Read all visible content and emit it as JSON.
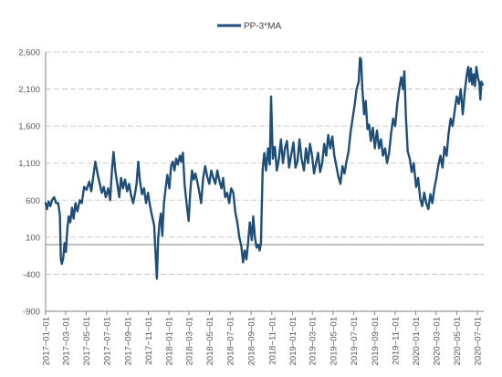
{
  "chart_data": {
    "type": "line",
    "title": "",
    "xlabel": "",
    "ylabel": "",
    "ylim": [
      -900,
      2600
    ],
    "yticks": [
      -900,
      -400,
      100,
      600,
      1100,
      1600,
      2100,
      2600
    ],
    "ytick_labels": [
      "-900",
      "-400",
      "100",
      "600",
      "1,100",
      "1,600",
      "2,100",
      "2,600"
    ],
    "xticks": [
      "2017-01-01",
      "2017-03-01",
      "2017-05-01",
      "2017-07-01",
      "2017-09-01",
      "2017-11-01",
      "2018-01-01",
      "2018-03-01",
      "2018-05-01",
      "2018-07-01",
      "2018-09-01",
      "2018-11-01",
      "2019-01-01",
      "2019-03-01",
      "2019-05-01",
      "2019-07-01",
      "2019-09-01",
      "2019-11-01",
      "2020-01-01",
      "2020-03-01",
      "2020-05-01",
      "2020-07-01"
    ],
    "xtick_labels": [
      "2017−01−01",
      "2017−03−01",
      "2017−05−01",
      "2017−07−01",
      "2017−09−01",
      "2017−11−01",
      "2018−01−01",
      "2018−03−01",
      "2018−05−01",
      "2018−07−01",
      "2018−09−01",
      "2018−11−01",
      "2019−01−01",
      "2019−03−01",
      "2019−05−01",
      "2019−07−01",
      "2019−09−01",
      "2019−11−01",
      "2020−01−01",
      "2020−03−01",
      "2020−05−01",
      "2020−07−01"
    ],
    "xlim": [
      "2017-01-01",
      "2020-07-20"
    ],
    "grid": "horizontal dashed",
    "legend_position": "top-center",
    "colors": {
      "series": "#1f4e79",
      "grid": "#bfbfbf",
      "zero_line": "#808080",
      "axis": "#808080",
      "text": "#595959"
    },
    "series": [
      {
        "name": "PP-3*MA",
        "points": [
          [
            "2017-01-01",
            560
          ],
          [
            "2017-01-05",
            480
          ],
          [
            "2017-01-10",
            580
          ],
          [
            "2017-01-15",
            520
          ],
          [
            "2017-01-20",
            600
          ],
          [
            "2017-01-26",
            640
          ],
          [
            "2017-02-01",
            560
          ],
          [
            "2017-02-07",
            560
          ],
          [
            "2017-02-12",
            400
          ],
          [
            "2017-02-15",
            -200
          ],
          [
            "2017-02-18",
            -260
          ],
          [
            "2017-02-22",
            -180
          ],
          [
            "2017-02-26",
            20
          ],
          [
            "2017-03-02",
            -100
          ],
          [
            "2017-03-06",
            200
          ],
          [
            "2017-03-10",
            380
          ],
          [
            "2017-03-15",
            300
          ],
          [
            "2017-03-20",
            500
          ],
          [
            "2017-03-25",
            350
          ],
          [
            "2017-03-30",
            560
          ],
          [
            "2017-04-05",
            450
          ],
          [
            "2017-04-12",
            600
          ],
          [
            "2017-04-18",
            560
          ],
          [
            "2017-04-25",
            780
          ],
          [
            "2017-05-02",
            740
          ],
          [
            "2017-05-10",
            850
          ],
          [
            "2017-05-16",
            720
          ],
          [
            "2017-05-22",
            920
          ],
          [
            "2017-05-28",
            1120
          ],
          [
            "2017-06-04",
            950
          ],
          [
            "2017-06-10",
            820
          ],
          [
            "2017-06-16",
            700
          ],
          [
            "2017-06-22",
            780
          ],
          [
            "2017-06-28",
            640
          ],
          [
            "2017-07-05",
            760
          ],
          [
            "2017-07-11",
            600
          ],
          [
            "2017-07-16",
            1000
          ],
          [
            "2017-07-21",
            1250
          ],
          [
            "2017-07-26",
            1000
          ],
          [
            "2017-08-01",
            820
          ],
          [
            "2017-08-07",
            640
          ],
          [
            "2017-08-12",
            900
          ],
          [
            "2017-08-18",
            760
          ],
          [
            "2017-08-24",
            880
          ],
          [
            "2017-08-30",
            720
          ],
          [
            "2017-09-05",
            820
          ],
          [
            "2017-09-11",
            660
          ],
          [
            "2017-09-17",
            560
          ],
          [
            "2017-09-22",
            680
          ],
          [
            "2017-09-27",
            820
          ],
          [
            "2017-10-02",
            1120
          ],
          [
            "2017-10-07",
            860
          ],
          [
            "2017-10-13",
            680
          ],
          [
            "2017-10-19",
            760
          ],
          [
            "2017-10-25",
            560
          ],
          [
            "2017-10-31",
            700
          ],
          [
            "2017-11-06",
            520
          ],
          [
            "2017-11-12",
            380
          ],
          [
            "2017-11-18",
            260
          ],
          [
            "2017-11-22",
            -120
          ],
          [
            "2017-11-26",
            -460
          ],
          [
            "2017-11-30",
            80
          ],
          [
            "2017-12-04",
            300
          ],
          [
            "2017-12-08",
            420
          ],
          [
            "2017-12-12",
            120
          ],
          [
            "2017-12-17",
            560
          ],
          [
            "2017-12-22",
            760
          ],
          [
            "2017-12-27",
            940
          ],
          [
            "2018-01-02",
            760
          ],
          [
            "2018-01-07",
            1060
          ],
          [
            "2018-01-12",
            1120
          ],
          [
            "2018-01-17",
            1000
          ],
          [
            "2018-01-22",
            1160
          ],
          [
            "2018-01-27",
            1080
          ],
          [
            "2018-02-02",
            1200
          ],
          [
            "2018-02-06",
            1120
          ],
          [
            "2018-02-11",
            1240
          ],
          [
            "2018-02-16",
            820
          ],
          [
            "2018-02-22",
            560
          ],
          [
            "2018-02-28",
            320
          ],
          [
            "2018-03-05",
            720
          ],
          [
            "2018-03-10",
            1000
          ],
          [
            "2018-03-15",
            880
          ],
          [
            "2018-03-20",
            960
          ],
          [
            "2018-03-26",
            840
          ],
          [
            "2018-04-01",
            700
          ],
          [
            "2018-04-06",
            560
          ],
          [
            "2018-04-12",
            900
          ],
          [
            "2018-04-18",
            1060
          ],
          [
            "2018-04-24",
            920
          ],
          [
            "2018-04-30",
            820
          ],
          [
            "2018-05-06",
            1000
          ],
          [
            "2018-05-12",
            900
          ],
          [
            "2018-05-18",
            820
          ],
          [
            "2018-05-24",
            1000
          ],
          [
            "2018-05-30",
            860
          ],
          [
            "2018-06-05",
            760
          ],
          [
            "2018-06-10",
            900
          ],
          [
            "2018-06-16",
            640
          ],
          [
            "2018-06-22",
            700
          ],
          [
            "2018-06-28",
            560
          ],
          [
            "2018-07-04",
            760
          ],
          [
            "2018-07-10",
            700
          ],
          [
            "2018-07-16",
            440
          ],
          [
            "2018-07-22",
            300
          ],
          [
            "2018-07-28",
            100
          ],
          [
            "2018-08-03",
            -20
          ],
          [
            "2018-08-08",
            -240
          ],
          [
            "2018-08-13",
            -80
          ],
          [
            "2018-08-18",
            -200
          ],
          [
            "2018-08-23",
            40
          ],
          [
            "2018-08-28",
            300
          ],
          [
            "2018-09-03",
            60
          ],
          [
            "2018-09-07",
            380
          ],
          [
            "2018-09-12",
            100
          ],
          [
            "2018-09-17",
            -40
          ],
          [
            "2018-09-22",
            0
          ],
          [
            "2018-09-26",
            -80
          ],
          [
            "2018-09-30",
            20
          ],
          [
            "2018-10-05",
            1020
          ],
          [
            "2018-10-10",
            1240
          ],
          [
            "2018-10-15",
            1000
          ],
          [
            "2018-10-21",
            1300
          ],
          [
            "2018-10-26",
            1080
          ],
          [
            "2018-10-30",
            2000
          ],
          [
            "2018-11-04",
            1160
          ],
          [
            "2018-11-10",
            1320
          ],
          [
            "2018-11-16",
            1000
          ],
          [
            "2018-11-22",
            1160
          ],
          [
            "2018-11-28",
            1420
          ],
          [
            "2018-12-04",
            1100
          ],
          [
            "2018-12-10",
            1300
          ],
          [
            "2018-12-16",
            1400
          ],
          [
            "2018-12-22",
            1040
          ],
          [
            "2018-12-28",
            1200
          ],
          [
            "2019-01-04",
            1380
          ],
          [
            "2019-01-10",
            1040
          ],
          [
            "2019-01-16",
            1120
          ],
          [
            "2019-01-22",
            1420
          ],
          [
            "2019-01-28",
            1160
          ],
          [
            "2019-02-04",
            1000
          ],
          [
            "2019-02-10",
            1300
          ],
          [
            "2019-02-16",
            1100
          ],
          [
            "2019-02-22",
            1360
          ],
          [
            "2019-02-28",
            1200
          ],
          [
            "2019-03-06",
            960
          ],
          [
            "2019-03-12",
            1100
          ],
          [
            "2019-03-18",
            1240
          ],
          [
            "2019-03-24",
            980
          ],
          [
            "2019-03-30",
            1100
          ],
          [
            "2019-04-05",
            1360
          ],
          [
            "2019-04-11",
            1200
          ],
          [
            "2019-04-17",
            1480
          ],
          [
            "2019-04-23",
            1300
          ],
          [
            "2019-04-29",
            1460
          ],
          [
            "2019-05-05",
            1200
          ],
          [
            "2019-05-11",
            1060
          ],
          [
            "2019-05-17",
            920
          ],
          [
            "2019-05-23",
            820
          ],
          [
            "2019-05-29",
            1060
          ],
          [
            "2019-06-04",
            960
          ],
          [
            "2019-06-10",
            1120
          ],
          [
            "2019-06-16",
            1260
          ],
          [
            "2019-06-22",
            1520
          ],
          [
            "2019-06-28",
            1700
          ],
          [
            "2019-07-04",
            1880
          ],
          [
            "2019-07-10",
            2100
          ],
          [
            "2019-07-16",
            2200
          ],
          [
            "2019-07-20",
            2520
          ],
          [
            "2019-07-23",
            2500
          ],
          [
            "2019-07-27",
            2100
          ],
          [
            "2019-08-01",
            1760
          ],
          [
            "2019-08-06",
            1940
          ],
          [
            "2019-08-11",
            1560
          ],
          [
            "2019-08-16",
            1620
          ],
          [
            "2019-08-21",
            1400
          ],
          [
            "2019-08-27",
            1580
          ],
          [
            "2019-09-02",
            1300
          ],
          [
            "2019-09-08",
            1540
          ],
          [
            "2019-09-14",
            1300
          ],
          [
            "2019-09-20",
            1420
          ],
          [
            "2019-09-26",
            1200
          ],
          [
            "2019-10-02",
            1300
          ],
          [
            "2019-10-08",
            1100
          ],
          [
            "2019-10-14",
            1240
          ],
          [
            "2019-10-20",
            1500
          ],
          [
            "2019-10-26",
            1700
          ],
          [
            "2019-11-01",
            1600
          ],
          [
            "2019-11-07",
            1900
          ],
          [
            "2019-11-13",
            2100
          ],
          [
            "2019-11-19",
            2260
          ],
          [
            "2019-11-24",
            2100
          ],
          [
            "2019-11-28",
            2340
          ],
          [
            "2019-12-03",
            1700
          ],
          [
            "2019-12-08",
            1260
          ],
          [
            "2019-12-14",
            1160
          ],
          [
            "2019-12-20",
            980
          ],
          [
            "2019-12-26",
            1100
          ],
          [
            "2020-01-02",
            780
          ],
          [
            "2020-01-08",
            900
          ],
          [
            "2020-01-14",
            620
          ],
          [
            "2020-01-20",
            520
          ],
          [
            "2020-01-26",
            700
          ],
          [
            "2020-02-01",
            560
          ],
          [
            "2020-02-07",
            480
          ],
          [
            "2020-02-13",
            680
          ],
          [
            "2020-02-19",
            560
          ],
          [
            "2020-02-25",
            760
          ],
          [
            "2020-03-02",
            900
          ],
          [
            "2020-03-08",
            1080
          ],
          [
            "2020-03-14",
            1200
          ],
          [
            "2020-03-20",
            1040
          ],
          [
            "2020-03-26",
            1320
          ],
          [
            "2020-04-01",
            1200
          ],
          [
            "2020-04-07",
            1500
          ],
          [
            "2020-04-13",
            1700
          ],
          [
            "2020-04-19",
            1600
          ],
          [
            "2020-04-25",
            1800
          ],
          [
            "2020-05-01",
            2000
          ],
          [
            "2020-05-07",
            1900
          ],
          [
            "2020-05-13",
            2100
          ],
          [
            "2020-05-19",
            1760
          ],
          [
            "2020-05-25",
            2080
          ],
          [
            "2020-05-31",
            2300
          ],
          [
            "2020-06-04",
            2400
          ],
          [
            "2020-06-08",
            2200
          ],
          [
            "2020-06-12",
            2380
          ],
          [
            "2020-06-16",
            2160
          ],
          [
            "2020-06-20",
            2300
          ],
          [
            "2020-06-24",
            2140
          ],
          [
            "2020-06-28",
            2400
          ],
          [
            "2020-07-03",
            2250
          ],
          [
            "2020-07-07",
            2180
          ],
          [
            "2020-07-10",
            1960
          ],
          [
            "2020-07-13",
            2200
          ],
          [
            "2020-07-17",
            2160
          ]
        ]
      }
    ]
  }
}
